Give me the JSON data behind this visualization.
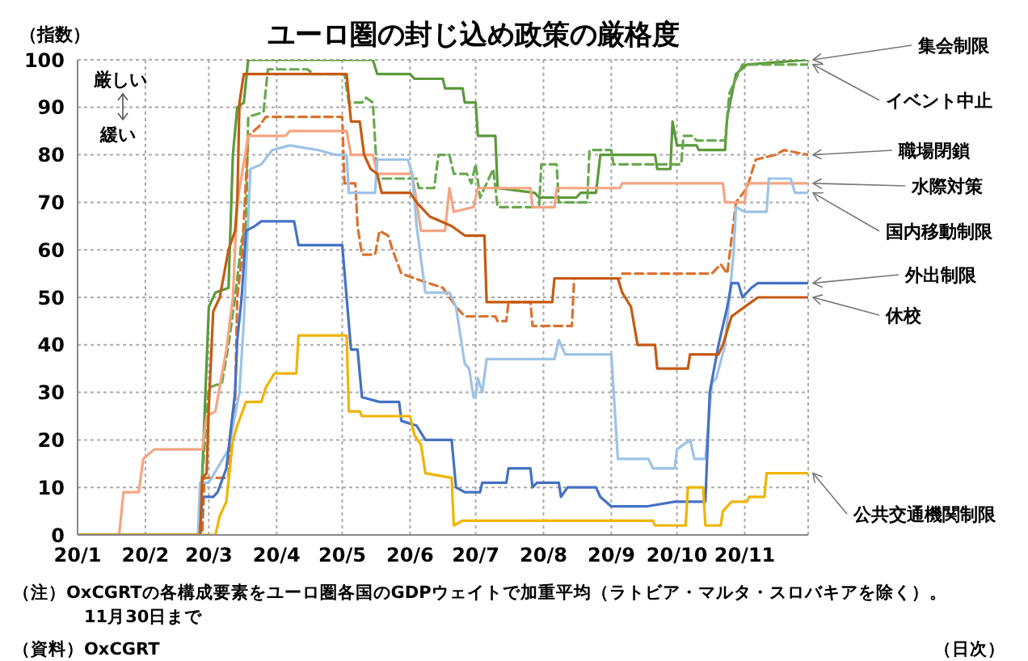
{
  "chart_data": {
    "type": "line",
    "title": "ユーロ圏の封じ込め政策の厳格度",
    "ylabel": "（指数）",
    "annotations": [
      "厳しい",
      "緩い",
      "（注）OxCGRTの各構成要素をユーロ圏各国のGDPウェイトで加重平均（ラトビア・マルタ・スロバキアを除く）。\n11月30日まで",
      "（資料）OxCGRT",
      "（日次）"
    ],
    "xlim": [
      "--01-01",
      "--11-30"
    ],
    "xticks": [
      {
        "value": "--01-01",
        "label": "20/1"
      },
      {
        "value": "--02-01",
        "label": "20/2"
      },
      {
        "value": "--03-01",
        "label": "20/3"
      },
      {
        "value": "--04-01",
        "label": "20/4"
      },
      {
        "value": "--05-01",
        "label": "20/5"
      },
      {
        "value": "--06-01",
        "label": "20/6"
      },
      {
        "value": "--07-01",
        "label": "20/7"
      },
      {
        "value": "--08-01",
        "label": "20/8"
      },
      {
        "value": "--09-01",
        "label": "20/9"
      },
      {
        "value": "--10-01",
        "label": "20/10"
      },
      {
        "value": "--11-01",
        "label": "20/11"
      }
    ],
    "ylim": [
      0,
      100
    ],
    "yticks": [
      0,
      10,
      20,
      30,
      40,
      50,
      60,
      70,
      80,
      90,
      100
    ],
    "grid": true,
    "legend": false,
    "marker": "none",
    "series": [
      {
        "name": "集会制限",
        "color": "#5b9a3a",
        "line_style": "solid",
        "x": [
          "--01-01",
          "--02-26",
          "--02-27",
          "--03-01",
          "--03-04",
          "--03-10",
          "--03-12",
          "--03-14",
          "--03-17",
          "--03-19",
          "--05-15",
          "--05-17",
          "--06-01",
          "--06-03",
          "--06-16",
          "--06-17",
          "--06-25",
          "--06-26",
          "--07-01",
          "--07-02",
          "--07-10",
          "--07-11",
          "--07-28",
          "--07-30",
          "--08-16",
          "--08-18",
          "--08-25",
          "--08-27",
          "--09-21",
          "--09-22",
          "--09-28",
          "--09-29",
          "--10-01",
          "--10-10",
          "--10-11",
          "--10-23",
          "--10-24",
          "--10-28",
          "--11-02",
          "--11-30"
        ],
        "values": [
          0,
          0,
          13,
          48,
          51,
          52,
          80,
          90,
          91,
          100,
          100,
          97,
          97,
          96,
          96,
          94,
          94,
          91,
          91,
          84,
          84,
          73,
          72,
          71,
          71,
          72,
          72,
          80,
          80,
          77,
          77,
          87,
          82,
          82,
          81,
          81,
          88,
          97,
          99,
          100
        ]
      },
      {
        "name": "イベント中止",
        "color": "#6aa84f",
        "line_style": "dashed",
        "x": [
          "--01-01",
          "--02-26",
          "--02-27",
          "--03-01",
          "--03-07",
          "--03-10",
          "--03-13",
          "--03-16",
          "--03-18",
          "--03-19",
          "--03-26",
          "--03-28",
          "--04-15",
          "--04-18",
          "--05-02",
          "--05-04",
          "--05-10",
          "--05-12",
          "--05-15",
          "--05-17",
          "--06-04",
          "--06-05",
          "--06-12",
          "--06-14",
          "--06-19",
          "--06-21",
          "--06-27",
          "--06-29",
          "--07-01",
          "--07-03",
          "--07-06",
          "--07-09",
          "--07-11",
          "--07-30",
          "--07-31",
          "--08-07",
          "--08-08",
          "--08-21",
          "--08-22",
          "--09-01",
          "--09-02",
          "--10-03",
          "--10-04",
          "--10-08",
          "--10-10",
          "--10-23",
          "--10-25",
          "--10-31",
          "--11-30"
        ],
        "values": [
          0,
          0,
          12,
          31,
          32,
          40,
          50,
          62,
          65,
          88,
          89,
          98,
          98,
          97,
          97,
          91,
          91,
          92,
          91,
          75,
          75,
          73,
          73,
          80,
          80,
          76,
          76,
          74,
          78,
          71,
          74,
          77,
          69,
          69,
          78,
          78,
          70,
          70,
          81,
          81,
          78,
          78,
          84,
          84,
          83,
          83,
          93,
          99,
          99
        ]
      },
      {
        "name": "職場閉鎖",
        "color": "#d9732f",
        "line_style": "dashed",
        "x": [
          "--01-01",
          "--02-27",
          "--02-28",
          "--03-10",
          "--03-11",
          "--03-13",
          "--03-14",
          "--03-16",
          "--03-17",
          "--03-19",
          "--03-24",
          "--03-27",
          "--05-01",
          "--05-02",
          "--05-07",
          "--05-08",
          "--05-10",
          "--05-16",
          "--05-18",
          "--05-22",
          "--05-24",
          "--05-28",
          "--06-03",
          "--06-16",
          "--06-22",
          "--06-26",
          "--07-10",
          "--07-11",
          "--07-15",
          "--07-16",
          "--07-26",
          "--07-27",
          "--08-14",
          "--08-15",
          "--09-05",
          "--09-06",
          "--10-13",
          "--10-17",
          "--10-21",
          "--10-24",
          "--10-28",
          "--11-02",
          "--11-06",
          "--11-15",
          "--11-19",
          "--11-30"
        ],
        "values": [
          0,
          0,
          12,
          12,
          22,
          28,
          50,
          58,
          66,
          84,
          86,
          88,
          88,
          74,
          74,
          65,
          59,
          59,
          64,
          63,
          60,
          55,
          54,
          52,
          48,
          46,
          46,
          45,
          45,
          49,
          49,
          44,
          44,
          54,
          54,
          55,
          55,
          55,
          57,
          55,
          70,
          73,
          79,
          80,
          81,
          80
        ]
      },
      {
        "name": "水際対策",
        "color": "#f4a582",
        "line_style": "solid",
        "x": [
          "--01-01",
          "--01-20",
          "--01-22",
          "--01-29",
          "--01-31",
          "--02-05",
          "--02-27",
          "--02-29",
          "--03-04",
          "--03-09",
          "--03-12",
          "--03-14",
          "--03-19",
          "--04-05",
          "--04-07",
          "--05-03",
          "--05-05",
          "--05-15",
          "--05-17",
          "--06-02",
          "--06-04",
          "--06-06",
          "--06-17",
          "--06-19",
          "--06-21",
          "--06-30",
          "--07-02",
          "--07-26",
          "--07-27",
          "--08-06",
          "--08-07",
          "--09-05",
          "--09-06",
          "--10-22",
          "--10-23",
          "--11-01",
          "--11-02",
          "--11-06",
          "--11-30"
        ],
        "values": [
          0,
          0,
          9,
          9,
          16,
          18,
          18,
          25,
          26,
          39,
          50,
          70,
          84,
          84,
          85,
          85,
          80,
          80,
          76,
          76,
          70,
          64,
          64,
          73,
          68,
          69,
          73,
          73,
          69,
          69,
          73,
          73,
          74,
          74,
          70,
          70,
          74,
          74,
          74
        ]
      },
      {
        "name": "国内移動制限",
        "color": "#9dc3e6",
        "line_style": "solid",
        "x": [
          "--01-01",
          "--02-25",
          "--02-26",
          "--03-01",
          "--03-10",
          "--03-15",
          "--03-17",
          "--03-20",
          "--03-25",
          "--03-30",
          "--04-07",
          "--04-20",
          "--04-28",
          "--05-03",
          "--05-04",
          "--05-16",
          "--05-17",
          "--05-31",
          "--06-02",
          "--06-04",
          "--06-08",
          "--06-19",
          "--06-22",
          "--06-26",
          "--06-28",
          "--06-30",
          "--07-01",
          "--07-02",
          "--07-04",
          "--07-06",
          "--08-06",
          "--08-08",
          "--08-11",
          "--09-01",
          "--09-04",
          "--09-18",
          "--09-20",
          "--09-30",
          "--10-01",
          "--10-07",
          "--10-09",
          "--10-14",
          "--10-17",
          "--10-19",
          "--10-23",
          "--10-27",
          "--10-28",
          "--11-01",
          "--11-11",
          "--11-12",
          "--11-22",
          "--11-24",
          "--11-30"
        ],
        "values": [
          0,
          0,
          11,
          11,
          18,
          30,
          45,
          77,
          78,
          81,
          82,
          81,
          80,
          80,
          72,
          72,
          79,
          79,
          76,
          65,
          51,
          51,
          48,
          36,
          35,
          29,
          29,
          33,
          30,
          37,
          37,
          41,
          38,
          38,
          16,
          16,
          14,
          14,
          18,
          20,
          16,
          16,
          32,
          33,
          40,
          60,
          69,
          68,
          68,
          75,
          75,
          72,
          72
        ]
      },
      {
        "name": "外出制限",
        "color": "#4472c4",
        "line_style": "solid",
        "x": [
          "--01-01",
          "--02-26",
          "--02-27",
          "--03-03",
          "--03-05",
          "--03-09",
          "--03-11",
          "--03-13",
          "--03-14",
          "--03-16",
          "--03-18",
          "--03-22",
          "--03-25",
          "--04-09",
          "--04-11",
          "--05-01",
          "--05-03",
          "--05-05",
          "--05-08",
          "--05-10",
          "--05-18",
          "--05-19",
          "--05-27",
          "--05-28",
          "--06-04",
          "--06-08",
          "--06-20",
          "--06-22",
          "--06-26",
          "--07-03",
          "--07-04",
          "--07-15",
          "--07-16",
          "--07-26",
          "--07-27",
          "--07-29",
          "--08-08",
          "--08-09",
          "--08-12",
          "--08-25",
          "--08-27",
          "--09-01",
          "--09-17",
          "--09-30",
          "--10-14",
          "--10-16",
          "--10-20",
          "--10-24",
          "--10-26",
          "--10-29",
          "--10-31",
          "--11-04",
          "--11-07",
          "--11-30"
        ],
        "values": [
          0,
          0,
          8,
          8,
          9,
          14,
          22,
          30,
          41,
          50,
          64,
          65,
          66,
          66,
          61,
          61,
          50,
          39,
          39,
          29,
          28,
          28,
          28,
          24,
          23,
          20,
          20,
          10,
          9,
          9,
          11,
          11,
          14,
          14,
          10,
          11,
          11,
          8,
          10,
          10,
          8,
          6,
          6,
          7,
          7,
          30,
          40,
          48,
          53,
          53,
          50,
          52,
          53,
          53
        ]
      },
      {
        "name": "休校",
        "color": "#c55a11",
        "line_style": "solid",
        "x": [
          "--01-01",
          "--02-26",
          "--02-27",
          "--02-29",
          "--03-01",
          "--03-03",
          "--03-06",
          "--03-10",
          "--03-13",
          "--03-14",
          "--03-15",
          "--03-17",
          "--05-03",
          "--05-05",
          "--05-09",
          "--05-11",
          "--05-14",
          "--05-17",
          "--05-19",
          "--06-01",
          "--06-04",
          "--06-10",
          "--06-20",
          "--06-26",
          "--07-05",
          "--07-06",
          "--08-05",
          "--08-06",
          "--09-04",
          "--09-06",
          "--09-10",
          "--09-13",
          "--09-21",
          "--09-22",
          "--10-06",
          "--10-07",
          "--10-20",
          "--10-22",
          "--10-26",
          "--11-04",
          "--11-07",
          "--11-30"
        ],
        "values": [
          0,
          0,
          12,
          13,
          27,
          47,
          50,
          60,
          64,
          70,
          91,
          97,
          97,
          87,
          87,
          80,
          77,
          76,
          72,
          72,
          70,
          67,
          65,
          63,
          63,
          49,
          49,
          54,
          54,
          51,
          48,
          40,
          40,
          35,
          35,
          38,
          38,
          40,
          46,
          49,
          50,
          50
        ]
      },
      {
        "name": "公共交通機関制限",
        "color": "#f0b400",
        "line_style": "solid",
        "x": [
          "--01-01",
          "--03-04",
          "--03-06",
          "--03-09",
          "--03-12",
          "--03-14",
          "--03-18",
          "--03-25",
          "--03-27",
          "--03-31",
          "--04-10",
          "--04-11",
          "--05-03",
          "--05-04",
          "--05-09",
          "--05-10",
          "--06-01",
          "--06-03",
          "--06-06",
          "--06-08",
          "--06-20",
          "--06-21",
          "--06-25",
          "--08-06",
          "--08-07",
          "--09-20",
          "--09-21",
          "--10-05",
          "--10-06",
          "--10-13",
          "--10-14",
          "--10-21",
          "--10-22",
          "--10-26",
          "--11-02",
          "--11-03",
          "--11-10",
          "--11-11",
          "--11-30"
        ],
        "values": [
          0,
          0,
          4,
          7,
          20,
          23,
          28,
          28,
          31,
          34,
          34,
          42,
          42,
          26,
          26,
          25,
          25,
          21,
          19,
          13,
          12,
          2,
          3,
          3,
          3,
          3,
          2,
          2,
          10,
          10,
          2,
          2,
          5,
          7,
          7,
          8,
          8,
          13,
          13
        ]
      }
    ]
  }
}
